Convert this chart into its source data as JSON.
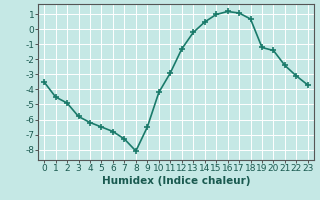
{
  "x": [
    0,
    1,
    2,
    3,
    4,
    5,
    6,
    7,
    8,
    9,
    10,
    11,
    12,
    13,
    14,
    15,
    16,
    17,
    18,
    19,
    20,
    21,
    22,
    23
  ],
  "y": [
    -3.5,
    -4.5,
    -4.9,
    -5.8,
    -6.2,
    -6.5,
    -6.8,
    -7.3,
    -8.1,
    -6.5,
    -4.2,
    -2.9,
    -1.3,
    -0.2,
    0.5,
    1.0,
    1.2,
    1.1,
    0.7,
    -1.2,
    -1.4,
    -2.4,
    -3.1,
    -3.7
  ],
  "line_color": "#1a7a6a",
  "marker": "+",
  "marker_size": 4,
  "marker_linewidth": 1.2,
  "line_width": 1.2,
  "xlabel": "Humidex (Indice chaleur)",
  "ylabel": "",
  "xlim": [
    -0.5,
    23.5
  ],
  "ylim": [
    -8.7,
    1.7
  ],
  "yticks": [
    1,
    0,
    -1,
    -2,
    -3,
    -4,
    -5,
    -6,
    -7,
    -8
  ],
  "xticks": [
    0,
    1,
    2,
    3,
    4,
    5,
    6,
    7,
    8,
    9,
    10,
    11,
    12,
    13,
    14,
    15,
    16,
    17,
    18,
    19,
    20,
    21,
    22,
    23
  ],
  "background_color": "#c5e8e5",
  "grid_color": "#ffffff",
  "tick_label_fontsize": 6.5,
  "xlabel_fontsize": 7.5,
  "xlabel_fontweight": "bold",
  "spine_color": "#555555"
}
